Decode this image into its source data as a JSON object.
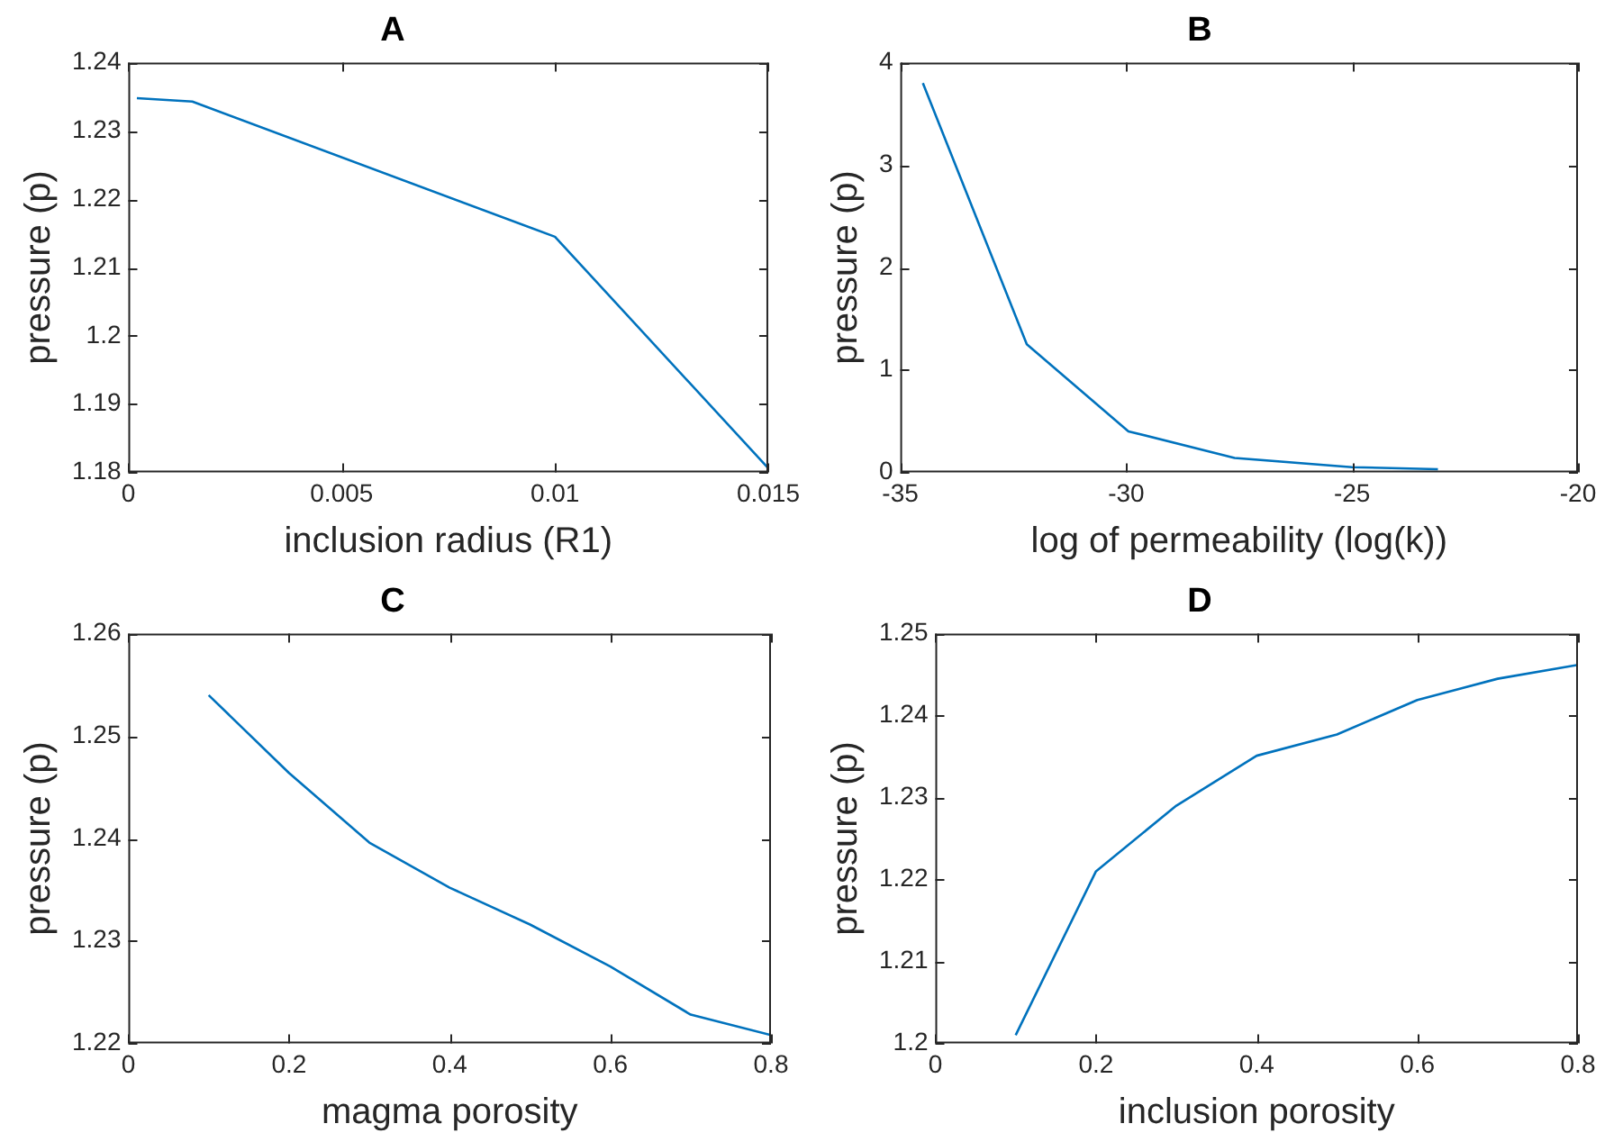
{
  "chart_data": [
    {
      "type": "line",
      "title": "A",
      "xlabel": "inclusion radius (R1)",
      "ylabel": "pressure (p)",
      "marker": "none",
      "xlim": [
        0,
        0.015
      ],
      "xticks": [
        0,
        0.005,
        0.01,
        0.015
      ],
      "ylim": [
        1.18,
        1.24
      ],
      "yticks": [
        1.18,
        1.19,
        1.2,
        1.21,
        1.22,
        1.23,
        1.24
      ],
      "series": [
        {
          "color": "#0072bd",
          "x": [
            0.0002,
            0.0015,
            0.01,
            0.015
          ],
          "values": [
            1.2348,
            1.2343,
            1.2145,
            1.1806
          ]
        }
      ]
    },
    {
      "type": "line",
      "title": "B",
      "xlabel": "log of permeability (log(k))",
      "ylabel": "pressure (p)",
      "marker": "none",
      "xlim": [
        -35,
        -20
      ],
      "xticks": [
        -35,
        -30,
        -25,
        -20
      ],
      "ylim": [
        0,
        4
      ],
      "yticks": [
        0,
        1,
        2,
        3,
        4
      ],
      "series": [
        {
          "color": "#0072bd",
          "x": [
            -34.5,
            -32.2,
            -29.95,
            -27.6,
            -25.0,
            -23.1
          ],
          "values": [
            3.8,
            1.25,
            0.4,
            0.14,
            0.05,
            0.03
          ]
        }
      ]
    },
    {
      "type": "line",
      "title": "C",
      "xlabel": "magma porosity",
      "ylabel": "pressure (p)",
      "marker": "none",
      "xlim": [
        0,
        0.8
      ],
      "xticks": [
        0,
        0.2,
        0.4,
        0.6,
        0.8
      ],
      "ylim": [
        1.22,
        1.26
      ],
      "yticks": [
        1.22,
        1.23,
        1.24,
        1.25,
        1.26
      ],
      "series": [
        {
          "color": "#0072bd",
          "x": [
            0.1,
            0.2,
            0.3,
            0.4,
            0.5,
            0.6,
            0.7,
            0.8
          ],
          "values": [
            1.254,
            1.2464,
            1.2396,
            1.2352,
            1.2316,
            1.2275,
            1.2228,
            1.2208
          ]
        }
      ]
    },
    {
      "type": "line",
      "title": "D",
      "xlabel": "inclusion porosity",
      "ylabel": "pressure (p)",
      "marker": "none",
      "xlim": [
        0,
        0.8
      ],
      "xticks": [
        0,
        0.2,
        0.4,
        0.6,
        0.8
      ],
      "ylim": [
        1.2,
        1.25
      ],
      "yticks": [
        1.2,
        1.21,
        1.22,
        1.23,
        1.24,
        1.25
      ],
      "series": [
        {
          "color": "#0072bd",
          "x": [
            0.1,
            0.2,
            0.3,
            0.4,
            0.5,
            0.6,
            0.7,
            0.8
          ],
          "values": [
            1.201,
            1.221,
            1.229,
            1.2351,
            1.2377,
            1.2419,
            1.2445,
            1.2462
          ]
        }
      ]
    }
  ]
}
